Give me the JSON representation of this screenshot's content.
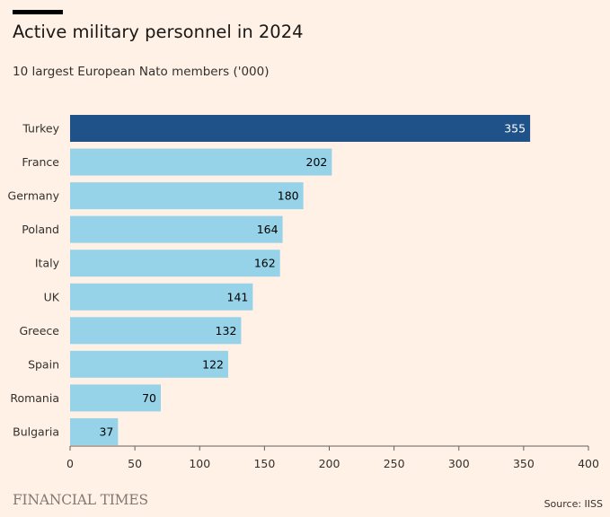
{
  "header": {
    "title": "Active military personnel in 2024",
    "subtitle": "10 largest European Nato members ('000)"
  },
  "footer": {
    "brand": "FINANCIAL TIMES",
    "source": "Source: IISS"
  },
  "colors": {
    "background": "#FFF1E5",
    "highlight": "#1F5288",
    "bar": "#96D3E8",
    "axis": "#66605C",
    "label_light": "#FFFFFF",
    "label_dark": "#000000"
  },
  "chart_data": {
    "type": "bar",
    "orientation": "horizontal",
    "title": "Active military personnel in 2024",
    "subtitle": "10 largest European Nato members ('000)",
    "categories": [
      "Turkey",
      "France",
      "Germany",
      "Poland",
      "Italy",
      "UK",
      "Greece",
      "Spain",
      "Romania",
      "Bulgaria"
    ],
    "values": [
      355,
      202,
      180,
      164,
      162,
      141,
      132,
      122,
      70,
      37
    ],
    "highlight_index": 0,
    "xlim": [
      0,
      400
    ],
    "xticks": [
      0,
      50,
      100,
      150,
      200,
      250,
      300,
      350,
      400
    ],
    "grid": false,
    "legend": "none",
    "data_labels": true
  }
}
